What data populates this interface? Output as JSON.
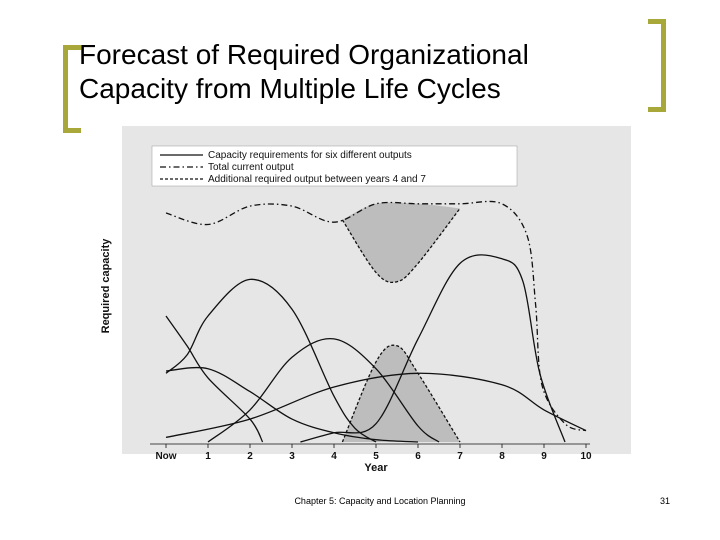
{
  "slide": {
    "title": "Forecast of Required Organizational\nCapacity from Multiple Life Cycles",
    "footer": "Chapter 5: Capacity and Location Planning",
    "page_number": "31",
    "accent_color": "#a7a73a"
  },
  "chart_data": {
    "type": "line",
    "title": "",
    "xlabel": "Year",
    "ylabel": "Required capacity",
    "x_ticks": [
      "Now",
      "1",
      "2",
      "3",
      "4",
      "5",
      "6",
      "7",
      "8",
      "9",
      "10"
    ],
    "xlim": [
      0,
      10
    ],
    "ylim": [
      0,
      1
    ],
    "grid": false,
    "legend_position": "top-left",
    "background_color": "#e6e6e6",
    "shade_color": "#bdbdbd",
    "legend": [
      {
        "label": "Capacity requirements for six different outputs",
        "style": "solid"
      },
      {
        "label": "Total current output",
        "style": "dash-dot"
      },
      {
        "label": "Additional required output between years 4 and 7",
        "style": "dashed"
      }
    ],
    "series": [
      {
        "style": "solid",
        "points": [
          [
            0,
            0.3
          ],
          [
            0.5,
            0.38
          ],
          [
            1,
            0.55
          ],
          [
            2,
            0.71
          ],
          [
            3,
            0.58
          ],
          [
            4,
            0.2
          ],
          [
            4.5,
            0.06
          ],
          [
            5,
            0.0
          ]
        ]
      },
      {
        "style": "solid",
        "points": [
          [
            0,
            0.55
          ],
          [
            0.5,
            0.42
          ],
          [
            1,
            0.28
          ],
          [
            2,
            0.1
          ],
          [
            2.3,
            0.0
          ]
        ]
      },
      {
        "style": "solid",
        "points": [
          [
            0,
            0.31
          ],
          [
            1,
            0.32
          ],
          [
            2,
            0.22
          ],
          [
            3,
            0.1
          ],
          [
            4,
            0.04
          ],
          [
            5,
            0.01
          ],
          [
            6,
            0.0
          ]
        ]
      },
      {
        "style": "solid",
        "points": [
          [
            1,
            0.0
          ],
          [
            2,
            0.14
          ],
          [
            3,
            0.37
          ],
          [
            4,
            0.45
          ],
          [
            5,
            0.32
          ],
          [
            6,
            0.07
          ],
          [
            6.5,
            0.0
          ]
        ]
      },
      {
        "style": "solid",
        "points": [
          [
            0,
            0.02
          ],
          [
            2,
            0.1
          ],
          [
            4,
            0.24
          ],
          [
            6,
            0.3
          ],
          [
            8,
            0.25
          ],
          [
            9,
            0.14
          ],
          [
            10,
            0.05
          ]
        ]
      },
      {
        "style": "solid",
        "points": [
          [
            3.2,
            0.0
          ],
          [
            4,
            0.04
          ],
          [
            5,
            0.08
          ],
          [
            6,
            0.45
          ],
          [
            7,
            0.78
          ],
          [
            8,
            0.8
          ],
          [
            8.5,
            0.7
          ],
          [
            8.9,
            0.3
          ],
          [
            9.5,
            0.0
          ]
        ]
      },
      {
        "style": "dash-dot",
        "points": [
          [
            0,
            1.0
          ],
          [
            1,
            0.95
          ],
          [
            2,
            1.03
          ],
          [
            3,
            1.03
          ],
          [
            4,
            0.96
          ],
          [
            5,
            1.04
          ],
          [
            6,
            1.04
          ],
          [
            7,
            1.04
          ],
          [
            8,
            1.04
          ],
          [
            8.6,
            0.9
          ],
          [
            8.8,
            0.6
          ],
          [
            8.95,
            0.25
          ],
          [
            9.5,
            0.08
          ],
          [
            10,
            0.05
          ]
        ]
      },
      {
        "style": "dashed",
        "points": [
          [
            4.2,
            0.97
          ],
          [
            5,
            0.74
          ],
          [
            5.5,
            0.7
          ],
          [
            6,
            0.78
          ],
          [
            7,
            1.02
          ]
        ]
      },
      {
        "style": "dashed",
        "points": [
          [
            4.2,
            0.0
          ],
          [
            5,
            0.35
          ],
          [
            5.5,
            0.42
          ],
          [
            6,
            0.3
          ],
          [
            7,
            0.0
          ]
        ]
      }
    ],
    "shaded_regions": [
      {
        "between": "total-vs-dip",
        "x_range": [
          4.2,
          7
        ]
      },
      {
        "under": "bump",
        "x_range": [
          4.2,
          7
        ]
      }
    ]
  }
}
